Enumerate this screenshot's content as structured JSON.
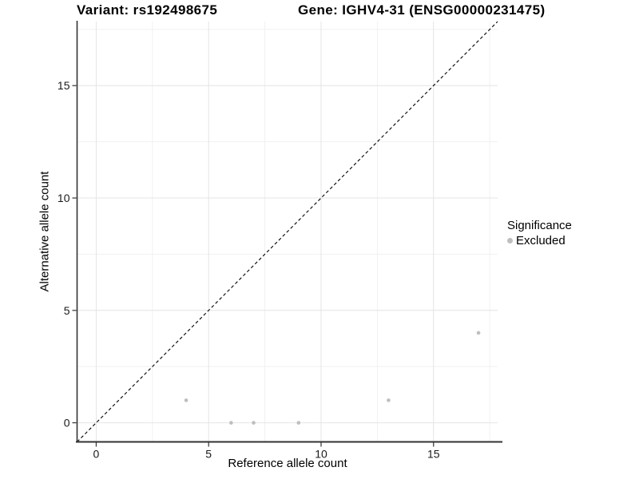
{
  "chart_data": {
    "type": "scatter",
    "title_left": "Variant: rs192498675",
    "title_right": "Gene: IGHV4-31 (ENSG00000231475)",
    "xlabel": "Reference allele count",
    "ylabel": "Alternative allele count",
    "xlim": [
      -0.85,
      17.85
    ],
    "ylim": [
      -0.85,
      17.85
    ],
    "x_ticks": [
      0,
      5,
      10,
      15
    ],
    "y_ticks": [
      0,
      5,
      10,
      15
    ],
    "x_minor_gridlines": [
      2.5,
      7.5,
      12.5,
      17.5
    ],
    "y_minor_gridlines": [
      2.5,
      7.5,
      12.5,
      17.5
    ],
    "grid": "major and minor, light gray on white background",
    "reference_line": {
      "kind": "identity y=x",
      "style": "dashed",
      "color": "#000000"
    },
    "series": [
      {
        "name": "Excluded",
        "color": "#bebebe",
        "points": [
          [
            4,
            1
          ],
          [
            6,
            0
          ],
          [
            7,
            0
          ],
          [
            9,
            0
          ],
          [
            13,
            1
          ],
          [
            17,
            4
          ]
        ]
      }
    ],
    "legend": {
      "title": "Significance",
      "position": "right",
      "items": [
        {
          "label": "Excluded",
          "color": "#bebebe"
        }
      ]
    },
    "colors": {
      "background": "#ffffff",
      "grid_major": "#e4e4e4",
      "grid_minor": "#f1f1f1",
      "axis_line": "#333333",
      "tick_mark": "#333333",
      "tick_text": "#1a1a1a",
      "point": "#bebebe",
      "dashed_line": "#000000"
    }
  }
}
